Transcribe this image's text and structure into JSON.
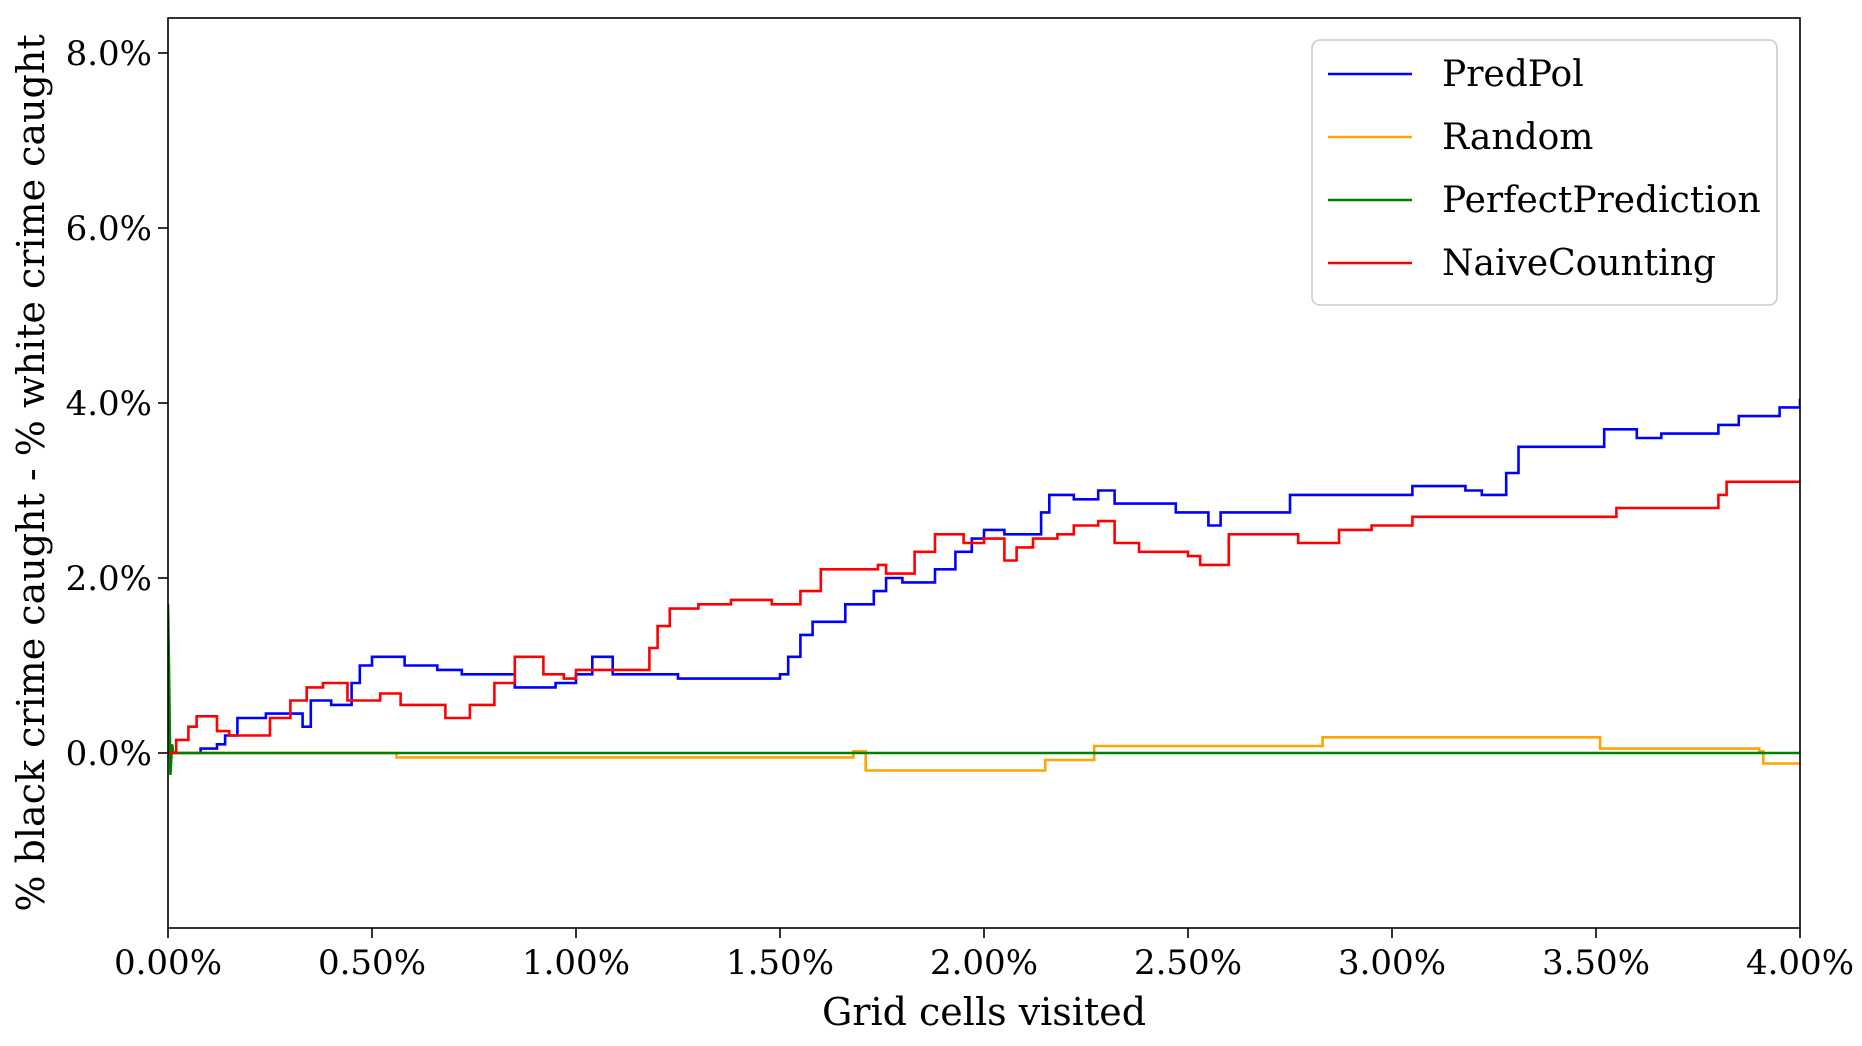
{
  "chart_data": {
    "type": "line",
    "title": "",
    "xlabel": "Grid cells visited",
    "ylabel": "% black crime caught - % white crime caught",
    "xlim": [
      0,
      4.0
    ],
    "ylim": [
      -2.0,
      8.4
    ],
    "x_ticks": [
      0,
      0.5,
      1.0,
      1.5,
      2.0,
      2.5,
      3.0,
      3.5,
      4.0
    ],
    "x_tick_labels": [
      "0.00%",
      "0.50%",
      "1.00%",
      "1.50%",
      "2.00%",
      "2.50%",
      "3.00%",
      "3.50%",
      "4.00%"
    ],
    "y_ticks": [
      0,
      2,
      4,
      6,
      8
    ],
    "y_tick_labels": [
      "0.0%",
      "2.0%",
      "4.0%",
      "6.0%",
      "8.0%"
    ],
    "grid": false,
    "legend_position": "top-right",
    "series": [
      {
        "name": "PredPol",
        "color": "#0000ff",
        "step": true,
        "points": [
          [
            0,
            0
          ],
          [
            0.06,
            0
          ],
          [
            0.08,
            0.05
          ],
          [
            0.12,
            0.1
          ],
          [
            0.14,
            0.2
          ],
          [
            0.17,
            0.4
          ],
          [
            0.24,
            0.45
          ],
          [
            0.33,
            0.3
          ],
          [
            0.35,
            0.6
          ],
          [
            0.4,
            0.55
          ],
          [
            0.45,
            0.8
          ],
          [
            0.47,
            1.0
          ],
          [
            0.5,
            1.1
          ],
          [
            0.58,
            1.0
          ],
          [
            0.66,
            0.95
          ],
          [
            0.72,
            0.9
          ],
          [
            0.85,
            0.75
          ],
          [
            0.95,
            0.8
          ],
          [
            1.0,
            0.9
          ],
          [
            1.04,
            1.1
          ],
          [
            1.09,
            0.9
          ],
          [
            1.25,
            0.85
          ],
          [
            1.5,
            0.9
          ],
          [
            1.52,
            1.1
          ],
          [
            1.55,
            1.35
          ],
          [
            1.58,
            1.5
          ],
          [
            1.66,
            1.7
          ],
          [
            1.73,
            1.85
          ],
          [
            1.76,
            2.0
          ],
          [
            1.8,
            1.95
          ],
          [
            1.88,
            2.1
          ],
          [
            1.93,
            2.3
          ],
          [
            1.97,
            2.45
          ],
          [
            2.0,
            2.55
          ],
          [
            2.05,
            2.5
          ],
          [
            2.1,
            2.5
          ],
          [
            2.14,
            2.75
          ],
          [
            2.16,
            2.95
          ],
          [
            2.22,
            2.9
          ],
          [
            2.28,
            3.0
          ],
          [
            2.32,
            2.85
          ],
          [
            2.47,
            2.75
          ],
          [
            2.55,
            2.6
          ],
          [
            2.58,
            2.75
          ],
          [
            2.75,
            2.95
          ],
          [
            3.05,
            3.05
          ],
          [
            3.18,
            3.0
          ],
          [
            3.22,
            2.95
          ],
          [
            3.28,
            3.2
          ],
          [
            3.31,
            3.5
          ],
          [
            3.52,
            3.7
          ],
          [
            3.6,
            3.6
          ],
          [
            3.66,
            3.65
          ],
          [
            3.8,
            3.75
          ],
          [
            3.85,
            3.85
          ],
          [
            3.95,
            3.95
          ],
          [
            4.0,
            4.05
          ]
        ]
      },
      {
        "name": "Random",
        "color": "#ffa500",
        "step": true,
        "points": [
          [
            0,
            0
          ],
          [
            0.56,
            -0.05
          ],
          [
            1.68,
            0.02
          ],
          [
            1.71,
            -0.2
          ],
          [
            2.15,
            -0.08
          ],
          [
            2.27,
            0.08
          ],
          [
            2.83,
            0.18
          ],
          [
            3.51,
            0.05
          ],
          [
            3.9,
            0.02
          ],
          [
            3.91,
            -0.12
          ],
          [
            4.0,
            -0.12
          ]
        ]
      },
      {
        "name": "PerfectPrediction",
        "color": "#008000",
        "step": false,
        "points": [
          [
            0,
            1.7
          ],
          [
            0.003,
            0.8
          ],
          [
            0.006,
            -0.25
          ],
          [
            0.01,
            0.1
          ],
          [
            0.013,
            0
          ],
          [
            4.0,
            0
          ]
        ]
      },
      {
        "name": "NaiveCounting",
        "color": "#ff0000",
        "step": true,
        "points": [
          [
            0,
            0
          ],
          [
            0.02,
            0.15
          ],
          [
            0.05,
            0.3
          ],
          [
            0.07,
            0.42
          ],
          [
            0.12,
            0.25
          ],
          [
            0.15,
            0.2
          ],
          [
            0.25,
            0.4
          ],
          [
            0.3,
            0.6
          ],
          [
            0.34,
            0.75
          ],
          [
            0.38,
            0.8
          ],
          [
            0.44,
            0.6
          ],
          [
            0.52,
            0.68
          ],
          [
            0.57,
            0.55
          ],
          [
            0.68,
            0.4
          ],
          [
            0.74,
            0.55
          ],
          [
            0.8,
            0.8
          ],
          [
            0.85,
            1.1
          ],
          [
            0.92,
            0.9
          ],
          [
            0.97,
            0.85
          ],
          [
            1.0,
            0.95
          ],
          [
            1.13,
            0.95
          ],
          [
            1.18,
            1.2
          ],
          [
            1.2,
            1.45
          ],
          [
            1.23,
            1.65
          ],
          [
            1.3,
            1.7
          ],
          [
            1.38,
            1.75
          ],
          [
            1.48,
            1.7
          ],
          [
            1.55,
            1.85
          ],
          [
            1.6,
            2.1
          ],
          [
            1.74,
            2.15
          ],
          [
            1.76,
            2.05
          ],
          [
            1.83,
            2.3
          ],
          [
            1.88,
            2.5
          ],
          [
            1.95,
            2.4
          ],
          [
            2.0,
            2.45
          ],
          [
            2.05,
            2.2
          ],
          [
            2.08,
            2.35
          ],
          [
            2.12,
            2.45
          ],
          [
            2.18,
            2.5
          ],
          [
            2.22,
            2.6
          ],
          [
            2.28,
            2.65
          ],
          [
            2.32,
            2.4
          ],
          [
            2.38,
            2.3
          ],
          [
            2.5,
            2.25
          ],
          [
            2.53,
            2.15
          ],
          [
            2.6,
            2.5
          ],
          [
            2.77,
            2.4
          ],
          [
            2.87,
            2.55
          ],
          [
            2.95,
            2.6
          ],
          [
            3.05,
            2.7
          ],
          [
            3.55,
            2.8
          ],
          [
            3.8,
            2.95
          ],
          [
            3.82,
            3.1
          ],
          [
            4.0,
            3.1
          ]
        ]
      }
    ]
  }
}
